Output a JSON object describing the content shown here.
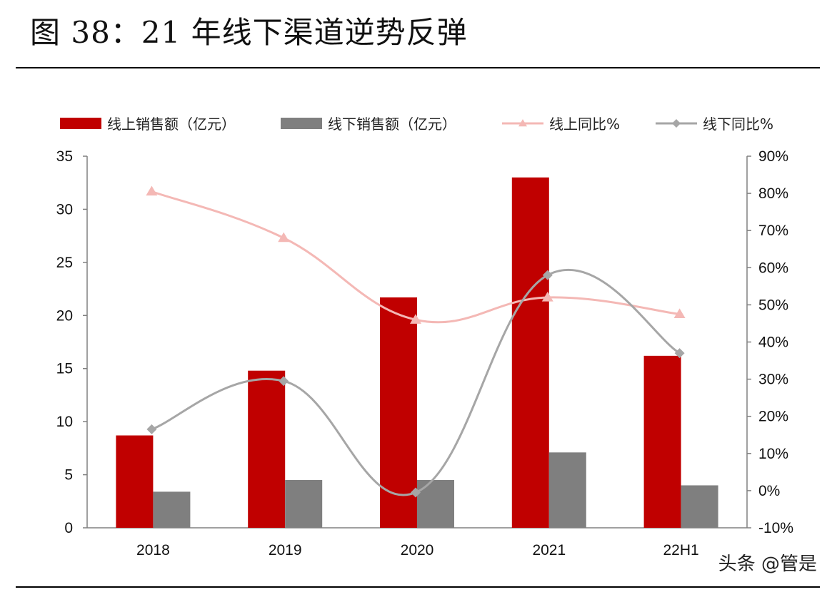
{
  "title": "图 38：21 年线下渠道逆势反弹",
  "watermark": "头条 @管是",
  "colors": {
    "online_bar": "#c00000",
    "offline_bar": "#7f7f7f",
    "online_line": "#f4b8b5",
    "offline_line": "#a6a6a6"
  },
  "chart_data": {
    "type": "bar",
    "categories": [
      "2018",
      "2019",
      "2020",
      "2021",
      "22H1"
    ],
    "series": [
      {
        "name": "线上销售额（亿元）",
        "kind": "bar",
        "axis": "left",
        "values": [
          8.7,
          14.8,
          21.7,
          33.0,
          16.2
        ]
      },
      {
        "name": "线下销售额（亿元）",
        "kind": "bar",
        "axis": "left",
        "values": [
          3.4,
          4.5,
          4.5,
          7.1,
          4.0
        ]
      },
      {
        "name": "线上同比%",
        "kind": "line",
        "axis": "right",
        "marker": "triangle",
        "values": [
          80.5,
          68.0,
          46.0,
          52.0,
          47.5
        ]
      },
      {
        "name": "线下同比%",
        "kind": "line",
        "axis": "right",
        "marker": "diamond",
        "values": [
          16.5,
          29.5,
          -0.5,
          58.0,
          37.0
        ]
      }
    ],
    "ylim": [
      0,
      35
    ],
    "yticks": [
      "0",
      "5",
      "10",
      "15",
      "20",
      "25",
      "30",
      "35"
    ],
    "y2lim": [
      -10,
      90
    ],
    "y2ticks": [
      "-10%",
      "0%",
      "10%",
      "20%",
      "30%",
      "40%",
      "50%",
      "60%",
      "70%",
      "80%",
      "90%"
    ],
    "legend_position": "top",
    "grid": false
  }
}
